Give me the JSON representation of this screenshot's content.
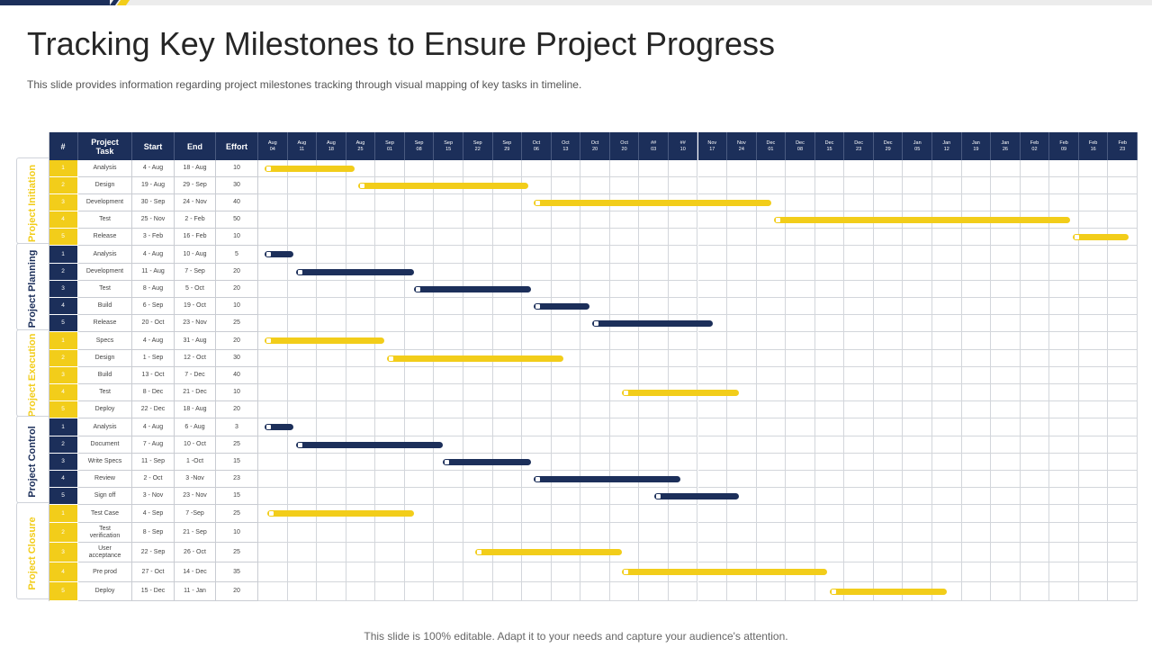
{
  "title": "Tracking Key Milestones to Ensure Project Progress",
  "subtitle": "This slide provides  information  regarding  project milestones tracking through  visual  mapping of key tasks in timeline.",
  "footer": "This slide is 100% editable. Adapt it to your needs and capture your audience's attention.",
  "colors": {
    "navy": "#1c2f5a",
    "yellow": "#f2cd1a",
    "grid": "#d3d6db"
  },
  "table_headers": {
    "num": "#",
    "task": "Project Task",
    "start": "Start",
    "end": "End",
    "effort": "Effort"
  },
  "timeline": [
    [
      "Aug",
      "04"
    ],
    [
      "Aug",
      "11"
    ],
    [
      "Aug",
      "18"
    ],
    [
      "Aug",
      "25"
    ],
    [
      "Sep",
      "01"
    ],
    [
      "Sep",
      "08"
    ],
    [
      "Sep",
      "15"
    ],
    [
      "Sep",
      "22"
    ],
    [
      "Sep",
      "29"
    ],
    [
      "Oct",
      "06"
    ],
    [
      "Oct",
      "13"
    ],
    [
      "Oct",
      "20"
    ],
    [
      "Oct",
      "20"
    ],
    [
      "##",
      "03"
    ],
    [
      "##",
      "10"
    ],
    [
      "Nov",
      "17"
    ],
    [
      "Nov",
      "24"
    ],
    [
      "Dec",
      "01"
    ],
    [
      "Dec",
      "08"
    ],
    [
      "Dec",
      "15"
    ],
    [
      "Dec",
      "23"
    ],
    [
      "Dec",
      "29"
    ],
    [
      "Jan",
      "05"
    ],
    [
      "Jan",
      "12"
    ],
    [
      "Jan",
      "19"
    ],
    [
      "Jan",
      "26"
    ],
    [
      "Feb",
      "02"
    ],
    [
      "Feb",
      "09"
    ],
    [
      "Feb",
      "16"
    ],
    [
      "Feb",
      "23"
    ]
  ],
  "groups": [
    {
      "label": "Project Initiation",
      "color": "yellow",
      "tasks": [
        {
          "num": "1",
          "task": "Analysis",
          "start": "4 - Aug",
          "end": "18 - Aug",
          "effort": "10",
          "bar": [
            0.2,
            3.3
          ]
        },
        {
          "num": "2",
          "task": "Design",
          "start": "19 - Aug",
          "end": "29 - Sep",
          "effort": "30",
          "bar": [
            3.4,
            9.2
          ]
        },
        {
          "num": "3",
          "task": "Development",
          "start": "30 - Sep",
          "end": "24 - Nov",
          "effort": "40",
          "bar": [
            9.4,
            17.5
          ]
        },
        {
          "num": "4",
          "task": "Test",
          "start": "25 - Nov",
          "end": "2 - Feb",
          "effort": "50",
          "bar": [
            17.6,
            27.7
          ]
        },
        {
          "num": "5",
          "task": "Release",
          "start": "3 - Feb",
          "end": "16 - Feb",
          "effort": "10",
          "bar": [
            27.8,
            29.7
          ]
        }
      ]
    },
    {
      "label": "Project Planning",
      "color": "navy",
      "tasks": [
        {
          "num": "1",
          "task": "Analysis",
          "start": "4 - Aug",
          "end": "10 - Aug",
          "effort": "5",
          "bar": [
            0.2,
            1.2
          ]
        },
        {
          "num": "2",
          "task": "Development",
          "start": "11 - Aug",
          "end": "7 - Sep",
          "effort": "20",
          "bar": [
            1.3,
            5.3
          ]
        },
        {
          "num": "3",
          "task": "Test",
          "start": "8 - Aug",
          "end": "5 - Oct",
          "effort": "20",
          "bar": [
            5.3,
            9.3
          ]
        },
        {
          "num": "4",
          "task": "Build",
          "start": "6 - Sep",
          "end": "19 - Oct",
          "effort": "10",
          "bar": [
            9.4,
            11.3
          ]
        },
        {
          "num": "5",
          "task": "Release",
          "start": "20 - Oct",
          "end": "23 - Nov",
          "effort": "25",
          "bar": [
            11.4,
            15.5
          ]
        }
      ]
    },
    {
      "label": "Project Execution",
      "color": "yellow",
      "tasks": [
        {
          "num": "1",
          "task": "Specs",
          "start": "4 - Aug",
          "end": "31 - Aug",
          "effort": "20",
          "bar": [
            0.2,
            4.3
          ]
        },
        {
          "num": "2",
          "task": "Design",
          "start": "1 - Sep",
          "end": "12 - Oct",
          "effort": "30",
          "bar": [
            4.4,
            10.4
          ]
        },
        {
          "num": "3",
          "task": "Build",
          "start": "13 - Oct",
          "end": "7 - Dec",
          "effort": "40",
          "bar": null
        },
        {
          "num": "4",
          "task": "Test",
          "start": "8 - Dec",
          "end": "21 - Dec",
          "effort": "10",
          "bar": [
            12.4,
            16.4
          ]
        },
        {
          "num": "5",
          "task": "Deploy",
          "start": "22 - Dec",
          "end": "18 - Aug",
          "effort": "20",
          "bar": null
        }
      ]
    },
    {
      "label": "Project Control",
      "color": "navy",
      "tasks": [
        {
          "num": "1",
          "task": "Analysis",
          "start": "4 - Aug",
          "end": "6 - Aug",
          "effort": "3",
          "bar": [
            0.2,
            1.2
          ]
        },
        {
          "num": "2",
          "task": "Document",
          "start": "7 - Aug",
          "end": "10 - Oct",
          "effort": "25",
          "bar": [
            1.3,
            6.3
          ]
        },
        {
          "num": "3",
          "task": "Write Specs",
          "start": "11 - Sep",
          "end": "1 -Oct",
          "effort": "15",
          "bar": [
            6.3,
            9.3
          ]
        },
        {
          "num": "4",
          "task": "Review",
          "start": "2 - Oct",
          "end": "3 -Nov",
          "effort": "23",
          "bar": [
            9.4,
            14.4
          ]
        },
        {
          "num": "5",
          "task": "Sign off",
          "start": "3 - Nov",
          "end": "23 - Nov",
          "effort": "15",
          "bar": [
            13.5,
            16.4
          ]
        }
      ]
    },
    {
      "label": "Project Closure",
      "color": "yellow",
      "tasks": [
        {
          "num": "1",
          "task": "Test Case",
          "start": "4 - Sep",
          "end": "7 -Sep",
          "effort": "25",
          "bar": [
            0.3,
            5.3
          ]
        },
        {
          "num": "2",
          "task": "Test verification",
          "start": "8 - Sep",
          "end": "21 - Sep",
          "effort": "10",
          "bar": null
        },
        {
          "num": "3",
          "task": "User acceptance",
          "start": "22 - Sep",
          "end": "26 - Oct",
          "effort": "25",
          "bar": [
            7.4,
            12.4
          ]
        },
        {
          "num": "4",
          "task": "Pre prod",
          "start": "27 - Oct",
          "end": "14 - Dec",
          "effort": "35",
          "bar": [
            12.4,
            19.4
          ]
        },
        {
          "num": "5",
          "task": "Deploy",
          "start": "15 - Dec",
          "end": "11 - Jan",
          "effort": "20",
          "bar": [
            19.5,
            23.5
          ]
        }
      ]
    }
  ]
}
